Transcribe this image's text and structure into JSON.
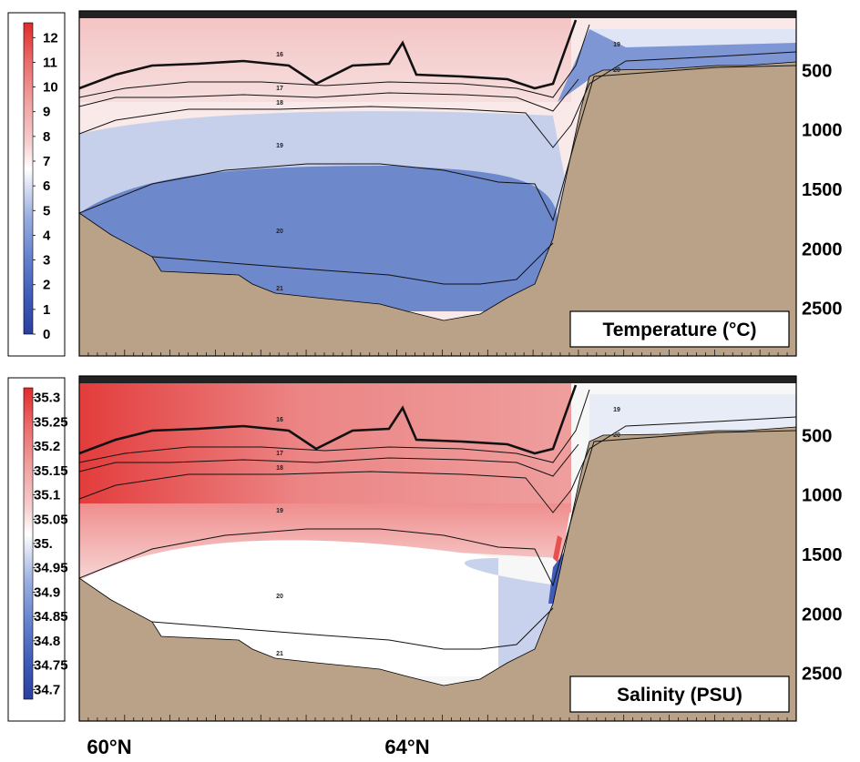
{
  "chart_data": [
    {
      "type": "heatmap",
      "title": "Temperature (°C)",
      "colorbar": {
        "ticks": [
          "12",
          "11",
          "10",
          "9",
          "8",
          "7",
          "6",
          "5",
          "4",
          "3",
          "2",
          "1",
          "0"
        ],
        "range": [
          0,
          12.6
        ],
        "colors": [
          "#2b3f9e",
          "#3e5cb8",
          "#5f7fcf",
          "#90a8de",
          "#c6d2ee",
          "#ffffff",
          "#f5caca",
          "#f0a0a0",
          "#ec7a7a",
          "#e84f4f",
          "#e02b2b"
        ]
      },
      "depth_ticks": [
        "500",
        "1000",
        "1500",
        "2000",
        "2500"
      ],
      "depth_values": [
        500,
        1000,
        1500,
        2000,
        2500
      ],
      "lat_ticks": [
        "60°N",
        "64°N"
      ],
      "isopycnal_labels": [
        "16",
        "17",
        "18",
        "19",
        "20",
        "21",
        "19",
        "20"
      ]
    },
    {
      "type": "heatmap",
      "title": "Salinity (PSU)",
      "colorbar": {
        "ticks": [
          "35.3",
          "35.25",
          "35.2",
          "35.15",
          "35.1",
          "35.05",
          "35.",
          "34.95",
          "34.9",
          "34.85",
          "34.8",
          "34.75",
          "34.7"
        ],
        "range": [
          34.68,
          35.32
        ],
        "colors": [
          "#2b3f9e",
          "#3e5cb8",
          "#5f7fcf",
          "#90a8de",
          "#c6d2ee",
          "#ffffff",
          "#f5caca",
          "#f0a0a0",
          "#ec7a7a",
          "#e84f4f",
          "#e02b2b"
        ]
      },
      "depth_ticks": [
        "500",
        "1000",
        "1500",
        "2000",
        "2500"
      ],
      "depth_values": [
        500,
        1000,
        1500,
        2000,
        2500
      ],
      "lat_ticks": [
        "60°N",
        "64°N"
      ],
      "isopycnal_labels": [
        "16",
        "17",
        "18",
        "19",
        "20",
        "21",
        "19",
        "20"
      ]
    }
  ],
  "colors": {
    "seafloor": "#b9a288",
    "warm": "#e84f4f",
    "cold": "#2b3f9e"
  }
}
